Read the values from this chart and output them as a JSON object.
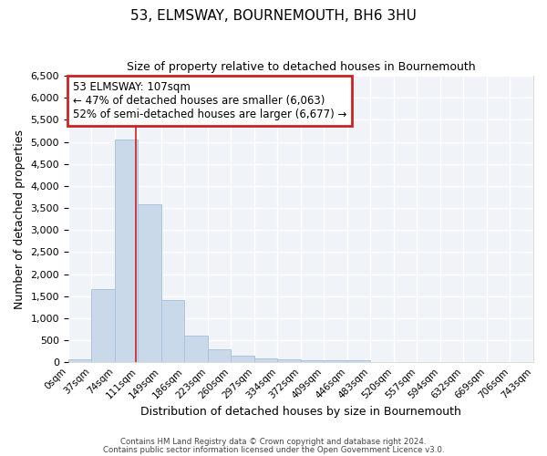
{
  "title": "53, ELMSWAY, BOURNEMOUTH, BH6 3HU",
  "subtitle": "Size of property relative to detached houses in Bournemouth",
  "xlabel": "Distribution of detached houses by size in Bournemouth",
  "ylabel": "Number of detached properties",
  "bin_starts": [
    0,
    37,
    74,
    111,
    148,
    185,
    222,
    259,
    296,
    333,
    370,
    407,
    444,
    481,
    518,
    555,
    592,
    629,
    666,
    703
  ],
  "bin_labels": [
    "0sqm",
    "37sqm",
    "74sqm",
    "111sqm",
    "149sqm",
    "186sqm",
    "223sqm",
    "260sqm",
    "297sqm",
    "334sqm",
    "372sqm",
    "409sqm",
    "446sqm",
    "483sqm",
    "520sqm",
    "557sqm",
    "594sqm",
    "632sqm",
    "669sqm",
    "706sqm",
    "743sqm"
  ],
  "bar_heights": [
    75,
    1650,
    5060,
    3580,
    1420,
    610,
    290,
    145,
    90,
    65,
    55,
    55,
    55,
    0,
    0,
    0,
    0,
    0,
    0,
    0
  ],
  "bin_width": 37,
  "bar_color": "#c9d9ea",
  "bar_edge_color": "#aac4dc",
  "vline_x": 107,
  "vline_color": "#cc2222",
  "ylim_max": 6500,
  "yticks": [
    0,
    500,
    1000,
    1500,
    2000,
    2500,
    3000,
    3500,
    4000,
    4500,
    5000,
    5500,
    6000,
    6500
  ],
  "annotation_line1": "53 ELMSWAY: 107sqm",
  "annotation_line2": "← 47% of detached houses are smaller (6,063)",
  "annotation_line3": "52% of semi-detached houses are larger (6,677) →",
  "annotation_box_color": "#cc2222",
  "bg_color": "#ffffff",
  "plot_bg_color": "#f0f4f8",
  "grid_color": "#ffffff",
  "footer_line1": "Contains HM Land Registry data © Crown copyright and database right 2024.",
  "footer_line2": "Contains public sector information licensed under the Open Government Licence v3.0."
}
